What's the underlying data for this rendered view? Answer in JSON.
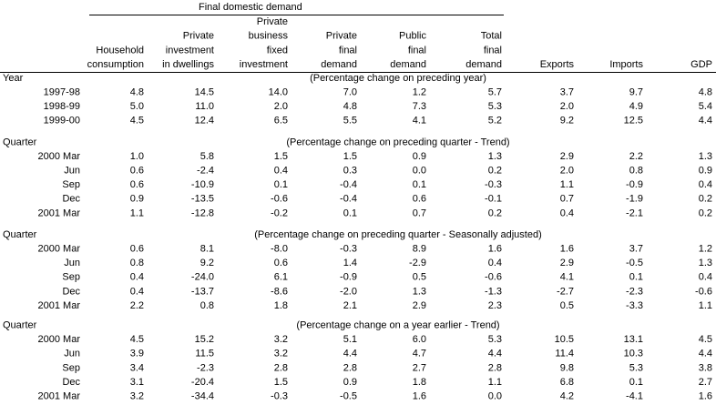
{
  "header": {
    "group": "Final domestic demand",
    "columns": [
      [
        "Household",
        "consumption"
      ],
      [
        "Private",
        "investment",
        "in dwellings"
      ],
      [
        "Private",
        "business",
        "fixed",
        "investment"
      ],
      [
        "Private",
        "final",
        "demand"
      ],
      [
        "Public",
        "final",
        "demand"
      ],
      [
        "Total",
        "final",
        "demand"
      ],
      [
        "Exports"
      ],
      [
        "Imports"
      ],
      [
        "GDP"
      ]
    ]
  },
  "sections": [
    {
      "label": "Year",
      "note": "(Percentage change on preceding year)",
      "rows": [
        {
          "label": "1997-98",
          "values": [
            "4.8",
            "14.5",
            "14.0",
            "7.0",
            "1.2",
            "5.7",
            "3.7",
            "9.7",
            "4.8"
          ]
        },
        {
          "label": "1998-99",
          "values": [
            "5.0",
            "11.0",
            "2.0",
            "4.8",
            "7.3",
            "5.3",
            "2.0",
            "4.9",
            "5.4"
          ]
        },
        {
          "label": "1999-00",
          "values": [
            "4.5",
            "12.4",
            "6.5",
            "5.5",
            "4.1",
            "5.2",
            "9.2",
            "12.5",
            "4.4"
          ]
        }
      ]
    },
    {
      "label": "Quarter",
      "note": "(Percentage change on preceding quarter - Trend)",
      "rows": [
        {
          "label": "2000 Mar",
          "values": [
            "1.0",
            "5.8",
            "1.5",
            "1.5",
            "0.9",
            "1.3",
            "2.9",
            "2.2",
            "1.3"
          ]
        },
        {
          "label": "Jun",
          "values": [
            "0.6",
            "-2.4",
            "0.4",
            "0.3",
            "0.0",
            "0.2",
            "2.0",
            "0.8",
            "0.9"
          ]
        },
        {
          "label": "Sep",
          "values": [
            "0.6",
            "-10.9",
            "0.1",
            "-0.4",
            "0.1",
            "-0.3",
            "1.1",
            "-0.9",
            "0.4"
          ]
        },
        {
          "label": "Dec",
          "values": [
            "0.9",
            "-13.5",
            "-0.6",
            "-0.4",
            "0.6",
            "-0.1",
            "0.7",
            "-1.9",
            "0.2"
          ]
        },
        {
          "label": "2001 Mar",
          "values": [
            "1.1",
            "-12.8",
            "-0.2",
            "0.1",
            "0.7",
            "0.2",
            "0.4",
            "-2.1",
            "0.2"
          ]
        }
      ]
    },
    {
      "label": "Quarter",
      "note": "(Percentage change on preceding quarter - Seasonally adjusted)",
      "rows": [
        {
          "label": "2000 Mar",
          "values": [
            "0.6",
            "8.1",
            "-8.0",
            "-0.3",
            "8.9",
            "1.6",
            "1.6",
            "3.7",
            "1.2"
          ]
        },
        {
          "label": "Jun",
          "values": [
            "0.8",
            "9.2",
            "0.6",
            "1.4",
            "-2.9",
            "0.4",
            "2.9",
            "-0.5",
            "1.3"
          ]
        },
        {
          "label": "Sep",
          "values": [
            "0.4",
            "-24.0",
            "6.1",
            "-0.9",
            "0.5",
            "-0.6",
            "4.1",
            "0.1",
            "0.4"
          ]
        },
        {
          "label": "Dec",
          "values": [
            "0.4",
            "-13.7",
            "-8.6",
            "-2.0",
            "1.3",
            "-1.3",
            "-2.7",
            "-2.3",
            "-0.6"
          ]
        },
        {
          "label": "2001 Mar",
          "values": [
            "2.2",
            "0.8",
            "1.8",
            "2.1",
            "2.9",
            "2.3",
            "0.5",
            "-3.3",
            "1.1"
          ]
        }
      ]
    },
    {
      "label": "Quarter",
      "note": "(Percentage change on a year earlier - Trend)",
      "rows": [
        {
          "label": "2000 Mar",
          "values": [
            "4.5",
            "15.2",
            "3.2",
            "5.1",
            "6.0",
            "5.3",
            "10.5",
            "13.1",
            "4.5"
          ]
        },
        {
          "label": "Jun",
          "values": [
            "3.9",
            "11.5",
            "3.2",
            "4.4",
            "4.7",
            "4.4",
            "11.4",
            "10.3",
            "4.4"
          ]
        },
        {
          "label": "Sep",
          "values": [
            "3.4",
            "-2.3",
            "2.8",
            "2.8",
            "2.7",
            "2.8",
            "9.8",
            "5.3",
            "3.8"
          ]
        },
        {
          "label": "Dec",
          "values": [
            "3.1",
            "-20.4",
            "1.5",
            "0.9",
            "1.8",
            "1.1",
            "6.8",
            "0.1",
            "2.7"
          ]
        },
        {
          "label": "2001 Mar",
          "values": [
            "3.2",
            "-34.4",
            "-0.3",
            "-0.5",
            "1.6",
            "0.0",
            "4.2",
            "-4.1",
            "1.6"
          ]
        }
      ]
    }
  ]
}
